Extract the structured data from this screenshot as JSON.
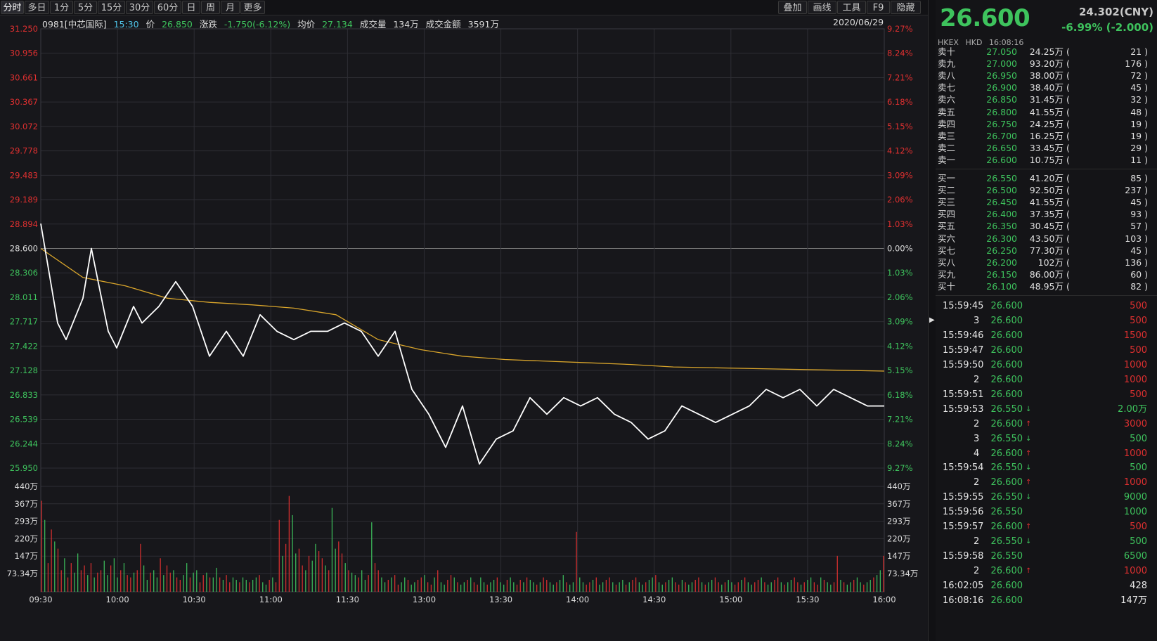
{
  "toolbar": {
    "periods": [
      "分时",
      "多日",
      "1分",
      "5分",
      "15分",
      "30分",
      "60分",
      "日",
      "周",
      "月",
      "更多"
    ],
    "tools": [
      "叠加",
      "画线",
      "工具",
      "F9",
      "隐藏"
    ]
  },
  "info": {
    "code": "0981[中芯国际]",
    "time": "15:30",
    "price_label": "价",
    "price": "26.850",
    "chg_label": "涨跌",
    "chg": "-1.750(-6.12%)",
    "avg_label": "均价",
    "avg": "27.134",
    "vol_label": "成交量",
    "vol": "134万",
    "amt_label": "成交金额",
    "amt": "3591万",
    "date": "2020/06/29"
  },
  "colors": {
    "up": "#e03030",
    "down": "#3ec35d",
    "price_line": "#ffffff",
    "avg_line": "#d9a52b",
    "grid": "#2e2e34",
    "ref": "#9a9a9a"
  },
  "chart_data": {
    "type": "line",
    "prev_close": 28.6,
    "ylim": [
      25.95,
      31.25
    ],
    "y_ticks": [
      "31.250",
      "30.956",
      "30.661",
      "30.367",
      "30.072",
      "29.778",
      "29.483",
      "29.189",
      "28.894",
      "28.600",
      "28.306",
      "28.011",
      "27.717",
      "27.422",
      "27.128",
      "26.833",
      "26.539",
      "26.244",
      "25.950"
    ],
    "pct_ticks": [
      "9.27%",
      "8.24%",
      "7.21%",
      "6.18%",
      "5.15%",
      "4.12%",
      "3.09%",
      "2.06%",
      "1.03%",
      "0.00%",
      "1.03%",
      "2.06%",
      "3.09%",
      "4.12%",
      "5.15%",
      "6.18%",
      "7.21%",
      "8.24%",
      "9.27%"
    ],
    "x_ticks": [
      "09:30",
      "10:00",
      "10:30",
      "11:00",
      "11:30",
      "13:00",
      "13:30",
      "14:00",
      "14:30",
      "15:00",
      "15:30",
      "16:00"
    ],
    "vol_ticks": [
      "440万",
      "367万",
      "293万",
      "220万",
      "147万",
      "73.34万"
    ],
    "vol_max": 440,
    "series": [
      {
        "name": "价",
        "x": [
          0,
          0.02,
          0.03,
          0.05,
          0.06,
          0.08,
          0.09,
          0.11,
          0.12,
          0.14,
          0.16,
          0.18,
          0.2,
          0.22,
          0.24,
          0.26,
          0.28,
          0.3,
          0.32,
          0.34,
          0.36,
          0.38,
          0.4,
          0.42,
          0.44,
          0.46,
          0.48,
          0.5,
          0.52,
          0.54,
          0.56,
          0.58,
          0.6,
          0.62,
          0.64,
          0.66,
          0.68,
          0.7,
          0.72,
          0.74,
          0.76,
          0.78,
          0.8,
          0.82,
          0.84,
          0.86,
          0.88,
          0.9,
          0.92,
          0.94,
          0.96,
          0.98,
          1.0
        ],
        "values": [
          28.9,
          27.7,
          27.5,
          28.0,
          28.6,
          27.6,
          27.4,
          27.9,
          27.7,
          27.9,
          28.2,
          27.9,
          27.3,
          27.6,
          27.3,
          27.8,
          27.6,
          27.5,
          27.6,
          27.6,
          27.7,
          27.6,
          27.3,
          27.6,
          26.9,
          26.6,
          26.2,
          26.7,
          26.0,
          26.3,
          26.4,
          26.8,
          26.6,
          26.8,
          26.7,
          26.8,
          26.6,
          26.5,
          26.3,
          26.4,
          26.7,
          26.6,
          26.5,
          26.6,
          26.7,
          26.9,
          26.8,
          26.9,
          26.7,
          26.9,
          26.8,
          26.7,
          26.7
        ]
      },
      {
        "name": "均价",
        "x": [
          0,
          0.05,
          0.1,
          0.15,
          0.2,
          0.25,
          0.3,
          0.35,
          0.4,
          0.45,
          0.5,
          0.55,
          0.6,
          0.65,
          0.7,
          0.75,
          0.8,
          0.85,
          0.9,
          0.95,
          1.0
        ],
        "values": [
          28.6,
          28.25,
          28.15,
          28.0,
          27.95,
          27.92,
          27.88,
          27.8,
          27.5,
          27.38,
          27.3,
          27.26,
          27.24,
          27.22,
          27.2,
          27.17,
          27.16,
          27.15,
          27.14,
          27.13,
          27.12
        ]
      }
    ],
    "volume": [
      380,
      300,
      120,
      260,
      210,
      180,
      90,
      140,
      60,
      120,
      80,
      160,
      90,
      110,
      70,
      120,
      60,
      80,
      90,
      130,
      70,
      110,
      140,
      60,
      90,
      120,
      70,
      60,
      80,
      90,
      200,
      110,
      50,
      80,
      90,
      60,
      140,
      70,
      110,
      80,
      90,
      60,
      50,
      70,
      120,
      60,
      80,
      90,
      40,
      70,
      80,
      60,
      60,
      100,
      60,
      50,
      70,
      40,
      60,
      50,
      40,
      60,
      50,
      40,
      50,
      60,
      70,
      40,
      30,
      50,
      60,
      40,
      300,
      150,
      200,
      400,
      320,
      160,
      180,
      110,
      90,
      150,
      130,
      200,
      170,
      140,
      110,
      90,
      350,
      180,
      210,
      160,
      120,
      90,
      80,
      70,
      60,
      90,
      50,
      70,
      290,
      120,
      90,
      60,
      40,
      50,
      60,
      70,
      30,
      40,
      60,
      50,
      30,
      40,
      50,
      60,
      70,
      40,
      30,
      60,
      90,
      40,
      30,
      50,
      70,
      60,
      40,
      30,
      40,
      50,
      60,
      40,
      30,
      60,
      40,
      30,
      40,
      50,
      60,
      40,
      30,
      50,
      60,
      40,
      30,
      50,
      40,
      60,
      50,
      40,
      30,
      40,
      60,
      50,
      40,
      30,
      40,
      50,
      70,
      40,
      30,
      40,
      250,
      60,
      40,
      30,
      40,
      50,
      60,
      30,
      40,
      50,
      60,
      40,
      30,
      40,
      50,
      30,
      40,
      50,
      60,
      40,
      30,
      40,
      50,
      60,
      70,
      40,
      30,
      40,
      50,
      60,
      40,
      30,
      50,
      40,
      30,
      40,
      50,
      60,
      40,
      30,
      40,
      50,
      60,
      40,
      30,
      40,
      50,
      40,
      30,
      40,
      50,
      60,
      40,
      30,
      40,
      50,
      60,
      40,
      30,
      40,
      50,
      60,
      40,
      30,
      40,
      50,
      60,
      40,
      30,
      40,
      50,
      60,
      40,
      30,
      60,
      50,
      40,
      30,
      40,
      150,
      50,
      40,
      30,
      40,
      50,
      60,
      40,
      30,
      40,
      50,
      60,
      70,
      90,
      150
    ],
    "volume_up": [
      0,
      2,
      5,
      8,
      13,
      17,
      21,
      26,
      29,
      33,
      38,
      41,
      45,
      49,
      51,
      56,
      63,
      71,
      74,
      79,
      85,
      91,
      96,
      101,
      107,
      115,
      118,
      124,
      131,
      138,
      145,
      152,
      159,
      166,
      172,
      179,
      186,
      193,
      199,
      205,
      211,
      217,
      223,
      229,
      235,
      241
    ]
  },
  "orderbook": {
    "asks": [
      {
        "label": "卖十",
        "price": "27.050",
        "vol": "24.25万",
        "cnt": "21"
      },
      {
        "label": "卖九",
        "price": "27.000",
        "vol": "93.20万",
        "cnt": "176"
      },
      {
        "label": "卖八",
        "price": "26.950",
        "vol": "38.00万",
        "cnt": "72"
      },
      {
        "label": "卖七",
        "price": "26.900",
        "vol": "38.40万",
        "cnt": "45"
      },
      {
        "label": "卖六",
        "price": "26.850",
        "vol": "31.45万",
        "cnt": "32"
      },
      {
        "label": "卖五",
        "price": "26.800",
        "vol": "41.55万",
        "cnt": "48"
      },
      {
        "label": "卖四",
        "price": "26.750",
        "vol": "24.25万",
        "cnt": "19"
      },
      {
        "label": "卖三",
        "price": "26.700",
        "vol": "16.25万",
        "cnt": "19"
      },
      {
        "label": "卖二",
        "price": "26.650",
        "vol": "33.45万",
        "cnt": "29"
      },
      {
        "label": "卖一",
        "price": "26.600",
        "vol": "10.75万",
        "cnt": "11"
      }
    ],
    "bids": [
      {
        "label": "买一",
        "price": "26.550",
        "vol": "41.20万",
        "cnt": "85"
      },
      {
        "label": "买二",
        "price": "26.500",
        "vol": "92.50万",
        "cnt": "237"
      },
      {
        "label": "买三",
        "price": "26.450",
        "vol": "41.55万",
        "cnt": "45"
      },
      {
        "label": "买四",
        "price": "26.400",
        "vol": "37.35万",
        "cnt": "93"
      },
      {
        "label": "买五",
        "price": "26.350",
        "vol": "30.45万",
        "cnt": "57"
      },
      {
        "label": "买六",
        "price": "26.300",
        "vol": "43.50万",
        "cnt": "103"
      },
      {
        "label": "买七",
        "price": "26.250",
        "vol": "77.30万",
        "cnt": "45"
      },
      {
        "label": "买八",
        "price": "26.200",
        "vol": "102万",
        "cnt": "136"
      },
      {
        "label": "买九",
        "price": "26.150",
        "vol": "86.00万",
        "cnt": "60"
      },
      {
        "label": "买十",
        "price": "26.100",
        "vol": "48.95万",
        "cnt": "82"
      }
    ]
  },
  "quote": {
    "price": "26.600",
    "ref": "24.302(CNY)",
    "chg": "-6.99% (-2.000)",
    "exchange": "HKEX",
    "currency": "HKD",
    "time": "16:08:16"
  },
  "ticks": [
    {
      "time": "15:59:45",
      "price": "26.600",
      "dir": "",
      "vol": "500",
      "vc": "up"
    },
    {
      "time": "3",
      "price": "26.600",
      "dir": "",
      "vol": "500",
      "vc": "up"
    },
    {
      "time": "15:59:46",
      "price": "26.600",
      "dir": "",
      "vol": "1500",
      "vc": "up"
    },
    {
      "time": "15:59:47",
      "price": "26.600",
      "dir": "",
      "vol": "500",
      "vc": "up"
    },
    {
      "time": "15:59:50",
      "price": "26.600",
      "dir": "",
      "vol": "1000",
      "vc": "up"
    },
    {
      "time": "2",
      "price": "26.600",
      "dir": "",
      "vol": "1000",
      "vc": "up"
    },
    {
      "time": "15:59:51",
      "price": "26.600",
      "dir": "",
      "vol": "500",
      "vc": "up"
    },
    {
      "time": "15:59:53",
      "price": "26.550",
      "dir": "down",
      "vol": "2.00万",
      "vc": "down"
    },
    {
      "time": "2",
      "price": "26.600",
      "dir": "up",
      "vol": "3000",
      "vc": "up"
    },
    {
      "time": "3",
      "price": "26.550",
      "dir": "down",
      "vol": "500",
      "vc": "down"
    },
    {
      "time": "4",
      "price": "26.600",
      "dir": "up",
      "vol": "1000",
      "vc": "up"
    },
    {
      "time": "15:59:54",
      "price": "26.550",
      "dir": "down",
      "vol": "500",
      "vc": "down"
    },
    {
      "time": "2",
      "price": "26.600",
      "dir": "up",
      "vol": "1000",
      "vc": "up"
    },
    {
      "time": "15:59:55",
      "price": "26.550",
      "dir": "down",
      "vol": "9000",
      "vc": "down"
    },
    {
      "time": "15:59:56",
      "price": "26.550",
      "dir": "",
      "vol": "1000",
      "vc": "down"
    },
    {
      "time": "15:59:57",
      "price": "26.600",
      "dir": "up",
      "vol": "500",
      "vc": "up"
    },
    {
      "time": "2",
      "price": "26.550",
      "dir": "down",
      "vol": "500",
      "vc": "down"
    },
    {
      "time": "15:59:58",
      "price": "26.550",
      "dir": "",
      "vol": "6500",
      "vc": "down"
    },
    {
      "time": "2",
      "price": "26.600",
      "dir": "up",
      "vol": "1000",
      "vc": "up"
    },
    {
      "time": "16:02:05",
      "price": "26.600",
      "dir": "",
      "vol": "428",
      "vc": "plain"
    },
    {
      "time": "16:08:16",
      "price": "26.600",
      "dir": "",
      "vol": "147万",
      "vc": "plain"
    }
  ]
}
